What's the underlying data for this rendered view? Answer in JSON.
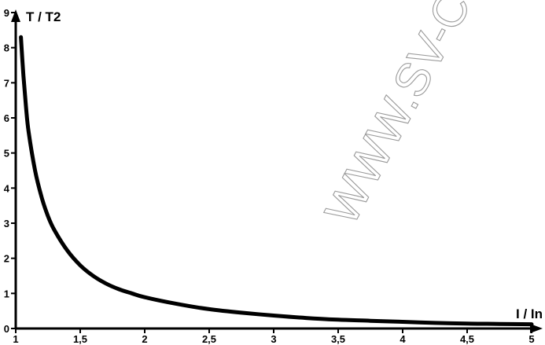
{
  "watermark": "WWW.SV-C",
  "chart_data": {
    "type": "line",
    "title": "",
    "xlabel": "I / In",
    "ylabel": "T / T2",
    "xlim": [
      1,
      5
    ],
    "ylim": [
      0,
      9
    ],
    "x_ticks": [
      "1",
      "1,5",
      "2",
      "2,5",
      "3",
      "3,5",
      "4",
      "4,5",
      "5"
    ],
    "y_ticks": [
      "0",
      "1",
      "2",
      "3",
      "4",
      "5",
      "6",
      "7",
      "8",
      "9"
    ],
    "x_tick_values": [
      1,
      1.5,
      2,
      2.5,
      3,
      3.5,
      4,
      4.5,
      5
    ],
    "y_tick_values": [
      0,
      1,
      2,
      3,
      4,
      5,
      6,
      7,
      8,
      9
    ],
    "grid": false,
    "series": [
      {
        "color": "#000000",
        "x": [
          1.04,
          1.06,
          1.08,
          1.1,
          1.15,
          1.2,
          1.25,
          1.3,
          1.4,
          1.5,
          1.6,
          1.7,
          1.8,
          1.9,
          2.0,
          2.25,
          2.5,
          2.75,
          3.0,
          3.25,
          3.5,
          3.75,
          4.0,
          4.25,
          4.5,
          4.75,
          5.0
        ],
        "y": [
          8.3,
          7.2,
          6.3,
          5.6,
          4.5,
          3.75,
          3.2,
          2.8,
          2.22,
          1.8,
          1.5,
          1.28,
          1.12,
          1.0,
          0.89,
          0.7,
          0.55,
          0.45,
          0.37,
          0.3,
          0.25,
          0.22,
          0.19,
          0.16,
          0.14,
          0.13,
          0.12
        ]
      }
    ]
  }
}
